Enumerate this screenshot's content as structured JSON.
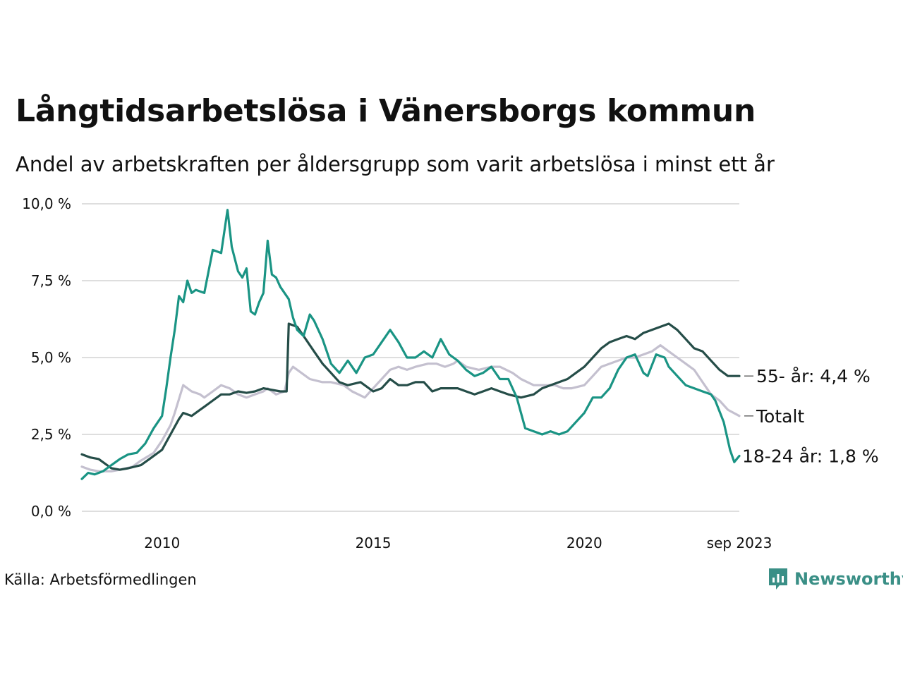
{
  "title": "Långtidsarbetslösa i Vänersborgs kommun",
  "subtitle": "Andel av arbetskraften per åldersgrupp som varit arbetslösa i minst ett år",
  "source": "Källa: Arbetsförmedlingen",
  "brand": {
    "name": "Newsworthy",
    "icon": "newsworthy-logo-icon"
  },
  "colors": {
    "youth": "#1a9484",
    "senior": "#254d48",
    "total": "#c4c0cf",
    "grid": "#dedede"
  },
  "chart_data": {
    "type": "line",
    "title": "Långtidsarbetslösa i Vänersborgs kommun",
    "xlabel": "",
    "ylabel": "",
    "ylim": [
      0,
      10
    ],
    "xlim": [
      2008.1,
      2023.67
    ],
    "yticks": [
      {
        "value": 0,
        "label": "0,0 %"
      },
      {
        "value": 2.5,
        "label": "2,5 %"
      },
      {
        "value": 5,
        "label": "5,0 %"
      },
      {
        "value": 7.5,
        "label": "7,5 %"
      },
      {
        "value": 10,
        "label": "10,0 %"
      }
    ],
    "xticks": [
      {
        "value": 2010,
        "label": "2010"
      },
      {
        "value": 2015,
        "label": "2015"
      },
      {
        "value": 2020,
        "label": "2020"
      },
      {
        "value": 2023.67,
        "label": "sep 2023"
      }
    ],
    "series": [
      {
        "key": "total",
        "name": "Totalt",
        "end_label": "Totalt",
        "x": [
          2008.1,
          2008.3,
          2008.5,
          2008.8,
          2009.0,
          2009.3,
          2009.5,
          2009.8,
          2010.0,
          2010.2,
          2010.3,
          2010.5,
          2010.7,
          2010.9,
          2011.0,
          2011.2,
          2011.4,
          2011.6,
          2011.8,
          2012.0,
          2012.2,
          2012.4,
          2012.5,
          2012.7,
          2012.9,
          2013.0,
          2013.1,
          2013.3,
          2013.5,
          2013.8,
          2014.0,
          2014.3,
          2014.5,
          2014.8,
          2015.0,
          2015.2,
          2015.4,
          2015.6,
          2015.8,
          2016.0,
          2016.3,
          2016.5,
          2016.7,
          2016.9,
          2017.0,
          2017.2,
          2017.5,
          2017.8,
          2018.0,
          2018.3,
          2018.5,
          2018.8,
          2019.0,
          2019.3,
          2019.5,
          2019.7,
          2020.0,
          2020.2,
          2020.4,
          2020.6,
          2020.8,
          2021.0,
          2021.2,
          2021.4,
          2021.6,
          2021.8,
          2022.0,
          2022.2,
          2022.4,
          2022.6,
          2022.8,
          2023.0,
          2023.2,
          2023.4,
          2023.67
        ],
        "y": [
          1.45,
          1.35,
          1.3,
          1.3,
          1.35,
          1.45,
          1.65,
          1.9,
          2.3,
          2.8,
          3.2,
          4.1,
          3.9,
          3.8,
          3.7,
          3.9,
          4.1,
          4.0,
          3.8,
          3.7,
          3.8,
          3.9,
          4.0,
          3.8,
          3.9,
          4.5,
          4.7,
          4.5,
          4.3,
          4.2,
          4.2,
          4.1,
          3.9,
          3.7,
          4.0,
          4.3,
          4.6,
          4.7,
          4.6,
          4.7,
          4.8,
          4.8,
          4.7,
          4.8,
          4.9,
          4.7,
          4.6,
          4.7,
          4.7,
          4.5,
          4.3,
          4.1,
          4.1,
          4.1,
          4.0,
          4.0,
          4.1,
          4.4,
          4.7,
          4.8,
          4.9,
          5.0,
          5.0,
          5.1,
          5.2,
          5.4,
          5.2,
          5.0,
          4.8,
          4.6,
          4.2,
          3.8,
          3.6,
          3.3,
          3.1
        ]
      },
      {
        "key": "senior",
        "name": "55- år",
        "end_label": "55- år: 4,4 %",
        "x": [
          2008.1,
          2008.3,
          2008.5,
          2008.8,
          2009.0,
          2009.2,
          2009.5,
          2009.7,
          2010.0,
          2010.2,
          2010.4,
          2010.5,
          2010.7,
          2010.9,
          2011.0,
          2011.2,
          2011.4,
          2011.6,
          2011.8,
          2012.0,
          2012.2,
          2012.4,
          2012.6,
          2012.8,
          2012.95,
          2013.0,
          2013.2,
          2013.4,
          2013.6,
          2013.8,
          2014.0,
          2014.2,
          2014.4,
          2014.7,
          2015.0,
          2015.2,
          2015.4,
          2015.6,
          2015.8,
          2016.0,
          2016.2,
          2016.4,
          2016.6,
          2016.8,
          2017.0,
          2017.2,
          2017.4,
          2017.6,
          2017.8,
          2018.0,
          2018.2,
          2018.5,
          2018.8,
          2019.0,
          2019.2,
          2019.4,
          2019.6,
          2019.8,
          2020.0,
          2020.2,
          2020.4,
          2020.6,
          2020.8,
          2021.0,
          2021.2,
          2021.4,
          2021.6,
          2021.8,
          2022.0,
          2022.1,
          2022.2,
          2022.4,
          2022.6,
          2022.8,
          2023.0,
          2023.2,
          2023.4,
          2023.67
        ],
        "y": [
          1.85,
          1.75,
          1.7,
          1.4,
          1.35,
          1.4,
          1.5,
          1.7,
          2.0,
          2.5,
          3.0,
          3.2,
          3.1,
          3.3,
          3.4,
          3.6,
          3.8,
          3.8,
          3.9,
          3.85,
          3.9,
          4.0,
          3.95,
          3.9,
          3.9,
          6.1,
          6.0,
          5.6,
          5.2,
          4.8,
          4.5,
          4.2,
          4.1,
          4.2,
          3.9,
          4.0,
          4.3,
          4.1,
          4.1,
          4.2,
          4.2,
          3.9,
          4.0,
          4.0,
          4.0,
          3.9,
          3.8,
          3.9,
          4.0,
          3.9,
          3.8,
          3.7,
          3.8,
          4.0,
          4.1,
          4.2,
          4.3,
          4.5,
          4.7,
          5.0,
          5.3,
          5.5,
          5.6,
          5.7,
          5.6,
          5.8,
          5.9,
          6.0,
          6.1,
          6.0,
          5.9,
          5.6,
          5.3,
          5.2,
          4.9,
          4.6,
          4.4,
          4.4
        ]
      },
      {
        "key": "youth",
        "name": "18-24 år",
        "end_label": "18-24 år: 1,8 %",
        "x": [
          2008.1,
          2008.25,
          2008.4,
          2008.6,
          2008.8,
          2009.0,
          2009.2,
          2009.4,
          2009.6,
          2009.8,
          2010.0,
          2010.1,
          2010.2,
          2010.3,
          2010.4,
          2010.5,
          2010.6,
          2010.7,
          2010.8,
          2011.0,
          2011.2,
          2011.4,
          2011.55,
          2011.65,
          2011.8,
          2011.9,
          2012.0,
          2012.1,
          2012.2,
          2012.3,
          2012.4,
          2012.5,
          2012.6,
          2012.7,
          2012.8,
          2013.0,
          2013.1,
          2013.2,
          2013.35,
          2013.5,
          2013.6,
          2013.8,
          2014.0,
          2014.2,
          2014.4,
          2014.6,
          2014.8,
          2015.0,
          2015.2,
          2015.4,
          2015.6,
          2015.8,
          2016.0,
          2016.2,
          2016.4,
          2016.6,
          2016.8,
          2017.0,
          2017.2,
          2017.4,
          2017.6,
          2017.8,
          2018.0,
          2018.2,
          2018.4,
          2018.6,
          2018.8,
          2019.0,
          2019.2,
          2019.4,
          2019.6,
          2019.8,
          2020.0,
          2020.2,
          2020.4,
          2020.6,
          2020.8,
          2021.0,
          2021.2,
          2021.4,
          2021.5,
          2021.7,
          2021.9,
          2022.0,
          2022.2,
          2022.4,
          2022.6,
          2022.8,
          2023.0,
          2023.1,
          2023.3,
          2023.45,
          2023.55,
          2023.67
        ],
        "y": [
          1.05,
          1.25,
          1.2,
          1.3,
          1.5,
          1.7,
          1.85,
          1.9,
          2.2,
          2.7,
          3.1,
          4.0,
          5.0,
          5.9,
          7.0,
          6.8,
          7.5,
          7.1,
          7.2,
          7.1,
          8.5,
          8.4,
          9.8,
          8.6,
          7.8,
          7.6,
          7.9,
          6.5,
          6.4,
          6.8,
          7.1,
          8.8,
          7.7,
          7.6,
          7.3,
          6.9,
          6.3,
          5.9,
          5.7,
          6.4,
          6.2,
          5.6,
          4.8,
          4.5,
          4.9,
          4.5,
          5.0,
          5.1,
          5.5,
          5.9,
          5.5,
          5.0,
          5.0,
          5.2,
          5.0,
          5.6,
          5.1,
          4.9,
          4.6,
          4.4,
          4.5,
          4.7,
          4.3,
          4.3,
          3.7,
          2.7,
          2.6,
          2.5,
          2.6,
          2.5,
          2.6,
          2.9,
          3.2,
          3.7,
          3.7,
          4.0,
          4.6,
          5.0,
          5.1,
          4.5,
          4.4,
          5.1,
          5.0,
          4.7,
          4.4,
          4.1,
          4.0,
          3.9,
          3.8,
          3.6,
          2.9,
          2.0,
          1.6,
          1.8
        ]
      }
    ]
  }
}
